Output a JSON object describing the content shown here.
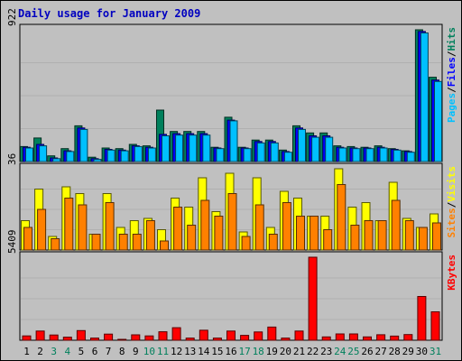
{
  "chart_data": {
    "type": "bar",
    "title": "Daily usage for January 2009",
    "categories": [
      "1",
      "2",
      "3",
      "4",
      "5",
      "6",
      "7",
      "8",
      "9",
      "10",
      "11",
      "12",
      "13",
      "14",
      "15",
      "16",
      "17",
      "18",
      "19",
      "20",
      "21",
      "22",
      "23",
      "24",
      "25",
      "26",
      "27",
      "28",
      "29",
      "30",
      "31"
    ],
    "weekend_days": [
      "3",
      "4",
      "10",
      "11",
      "17",
      "18",
      "24",
      "25",
      "31"
    ],
    "panels": [
      {
        "id": "hits-files-pages",
        "ymax_label": "922",
        "ylim": [
          0,
          922
        ],
        "legend": [
          {
            "text": "Pages",
            "color": "#00c0ff"
          },
          {
            "text": "/",
            "color": "#000000"
          },
          {
            "text": "Files",
            "color": "#0000ff"
          },
          {
            "text": "/",
            "color": "#000000"
          },
          {
            "text": "Hits",
            "color": "#00805c"
          }
        ],
        "series": [
          {
            "name": "Hits",
            "color": "#00805c",
            "values": [
              105,
              165,
              40,
              90,
              250,
              30,
              95,
              90,
              120,
              110,
              360,
              210,
              210,
              210,
              100,
              310,
              100,
              150,
              150,
              80,
              250,
              200,
              200,
              110,
              105,
              100,
              110,
              90,
              75,
              922,
              590
            ]
          },
          {
            "name": "Files",
            "color": "#0000ff",
            "values": [
              100,
              120,
              25,
              75,
              235,
              20,
              85,
              80,
              110,
              100,
              190,
              195,
              195,
              195,
              95,
              290,
              95,
              140,
              140,
              70,
              235,
              180,
              180,
              100,
              95,
              95,
              100,
              85,
              70,
              910,
              570
            ]
          },
          {
            "name": "Pages",
            "color": "#00c0ff",
            "values": [
              95,
              110,
              20,
              70,
              225,
              15,
              80,
              75,
              105,
              95,
              180,
              185,
              185,
              185,
              90,
              285,
              90,
              130,
              130,
              65,
              225,
              170,
              170,
              95,
              90,
              90,
              95,
              80,
              65,
              900,
              560
            ]
          }
        ]
      },
      {
        "id": "visits-sites",
        "ymax_label": "36",
        "ylim": [
          0,
          36
        ],
        "legend": [
          {
            "text": "Sites",
            "color": "#ff8000"
          },
          {
            "text": "/",
            "color": "#000000"
          },
          {
            "text": "Visits",
            "color": "#ffff00"
          }
        ],
        "series": [
          {
            "name": "Visits",
            "color": "#ffff00",
            "values": [
              13,
              27,
              6,
              28,
              25,
              7,
              25,
              10,
              13,
              14,
              9,
              23,
              19,
              32,
              17,
              34,
              8,
              32,
              10,
              26,
              23,
              15,
              15,
              36,
              19,
              21,
              13,
              30,
              14,
              10,
              16
            ]
          },
          {
            "name": "Sites",
            "color": "#ff8000",
            "values": [
              10,
              18,
              5,
              23,
              20,
              7,
              21,
              7,
              7,
              13,
              4,
              19,
              11,
              22,
              15,
              25,
              6,
              20,
              7,
              21,
              15,
              15,
              9,
              29,
              11,
              13,
              13,
              22,
              13,
              10,
              12
            ]
          }
        ]
      },
      {
        "id": "kbytes",
        "ymax_label": "5409",
        "ylim": [
          0,
          5409
        ],
        "legend": [
          {
            "text": "KBytes",
            "color": "#ff0000"
          }
        ],
        "series": [
          {
            "name": "KBytes",
            "color": "#ff0000",
            "values": [
              280,
              600,
              340,
              200,
              630,
              140,
              400,
              40,
              350,
              280,
              550,
              820,
              140,
              650,
              140,
              600,
              320,
              540,
              860,
              140,
              600,
              5409,
              220,
              410,
              410,
              220,
              360,
              270,
              370,
              2850,
              1850
            ]
          }
        ]
      }
    ]
  }
}
